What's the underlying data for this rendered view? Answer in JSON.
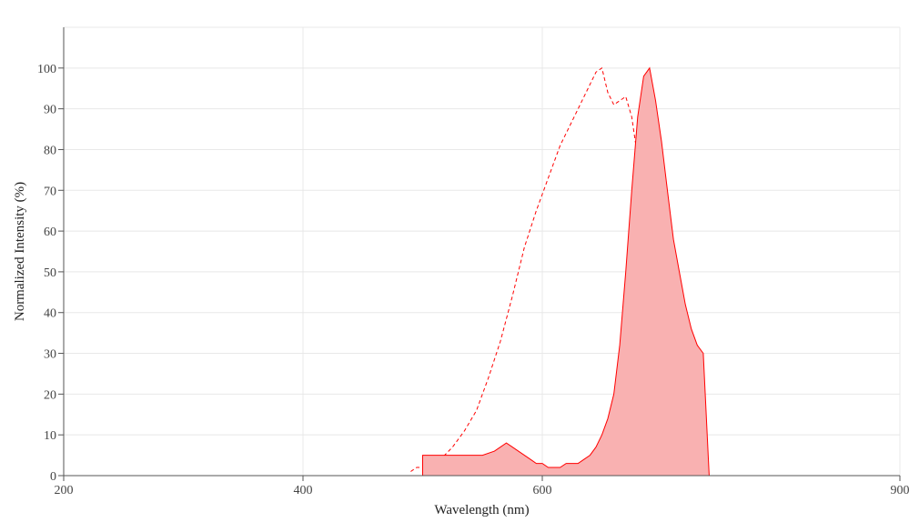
{
  "chart_data": {
    "type": "area",
    "title": "",
    "xlabel": "Wavelength (nm)",
    "ylabel": "Normalized Intensity (%)",
    "xlim": [
      200,
      900
    ],
    "ylim": [
      0,
      110
    ],
    "x_ticks": [
      "200",
      "400",
      "600",
      "900"
    ],
    "x_tick_values": [
      200,
      400,
      600,
      900
    ],
    "y_ticks": [
      "0",
      "10",
      "20",
      "30",
      "40",
      "50",
      "60",
      "70",
      "80",
      "90",
      "100"
    ],
    "y_tick_values": [
      0,
      10,
      20,
      30,
      40,
      50,
      60,
      70,
      80,
      90,
      100
    ],
    "grid": true,
    "legend": "none",
    "series": [
      {
        "style": "dashed-line",
        "color": "#ff0000",
        "x": [
          490,
          495,
          505,
          515,
          525,
          535,
          545,
          555,
          565,
          575,
          585,
          595,
          605,
          615,
          625,
          635,
          645,
          650,
          655,
          660,
          665,
          670,
          675,
          680,
          685,
          690,
          695,
          700,
          705,
          710,
          715,
          720,
          725,
          730,
          735
        ],
        "y": [
          1,
          2,
          2,
          4,
          7,
          11,
          16,
          24,
          33,
          44,
          56,
          65,
          73,
          81,
          87,
          93,
          99,
          100,
          94,
          91,
          92,
          93,
          88,
          78,
          58,
          38,
          22,
          12,
          6,
          3,
          1,
          0,
          0,
          0,
          0
        ]
      },
      {
        "style": "filled-area",
        "color": "#ff0000",
        "fill": "#f9b1b1",
        "x": [
          500,
          510,
          520,
          530,
          540,
          550,
          560,
          565,
          570,
          575,
          580,
          585,
          590,
          595,
          600,
          605,
          610,
          615,
          620,
          625,
          630,
          635,
          640,
          645,
          650,
          655,
          660,
          665,
          670,
          675,
          680,
          685,
          690,
          695,
          700,
          705,
          710,
          715,
          720,
          725,
          730,
          735,
          740
        ],
        "y": [
          5,
          5,
          5,
          5,
          5,
          5,
          6,
          7,
          8,
          7,
          6,
          5,
          4,
          3,
          3,
          2,
          2,
          2,
          3,
          3,
          3,
          4,
          5,
          7,
          10,
          14,
          20,
          32,
          50,
          70,
          88,
          98,
          100,
          92,
          82,
          70,
          58,
          50,
          42,
          36,
          32,
          30,
          0
        ]
      }
    ]
  }
}
